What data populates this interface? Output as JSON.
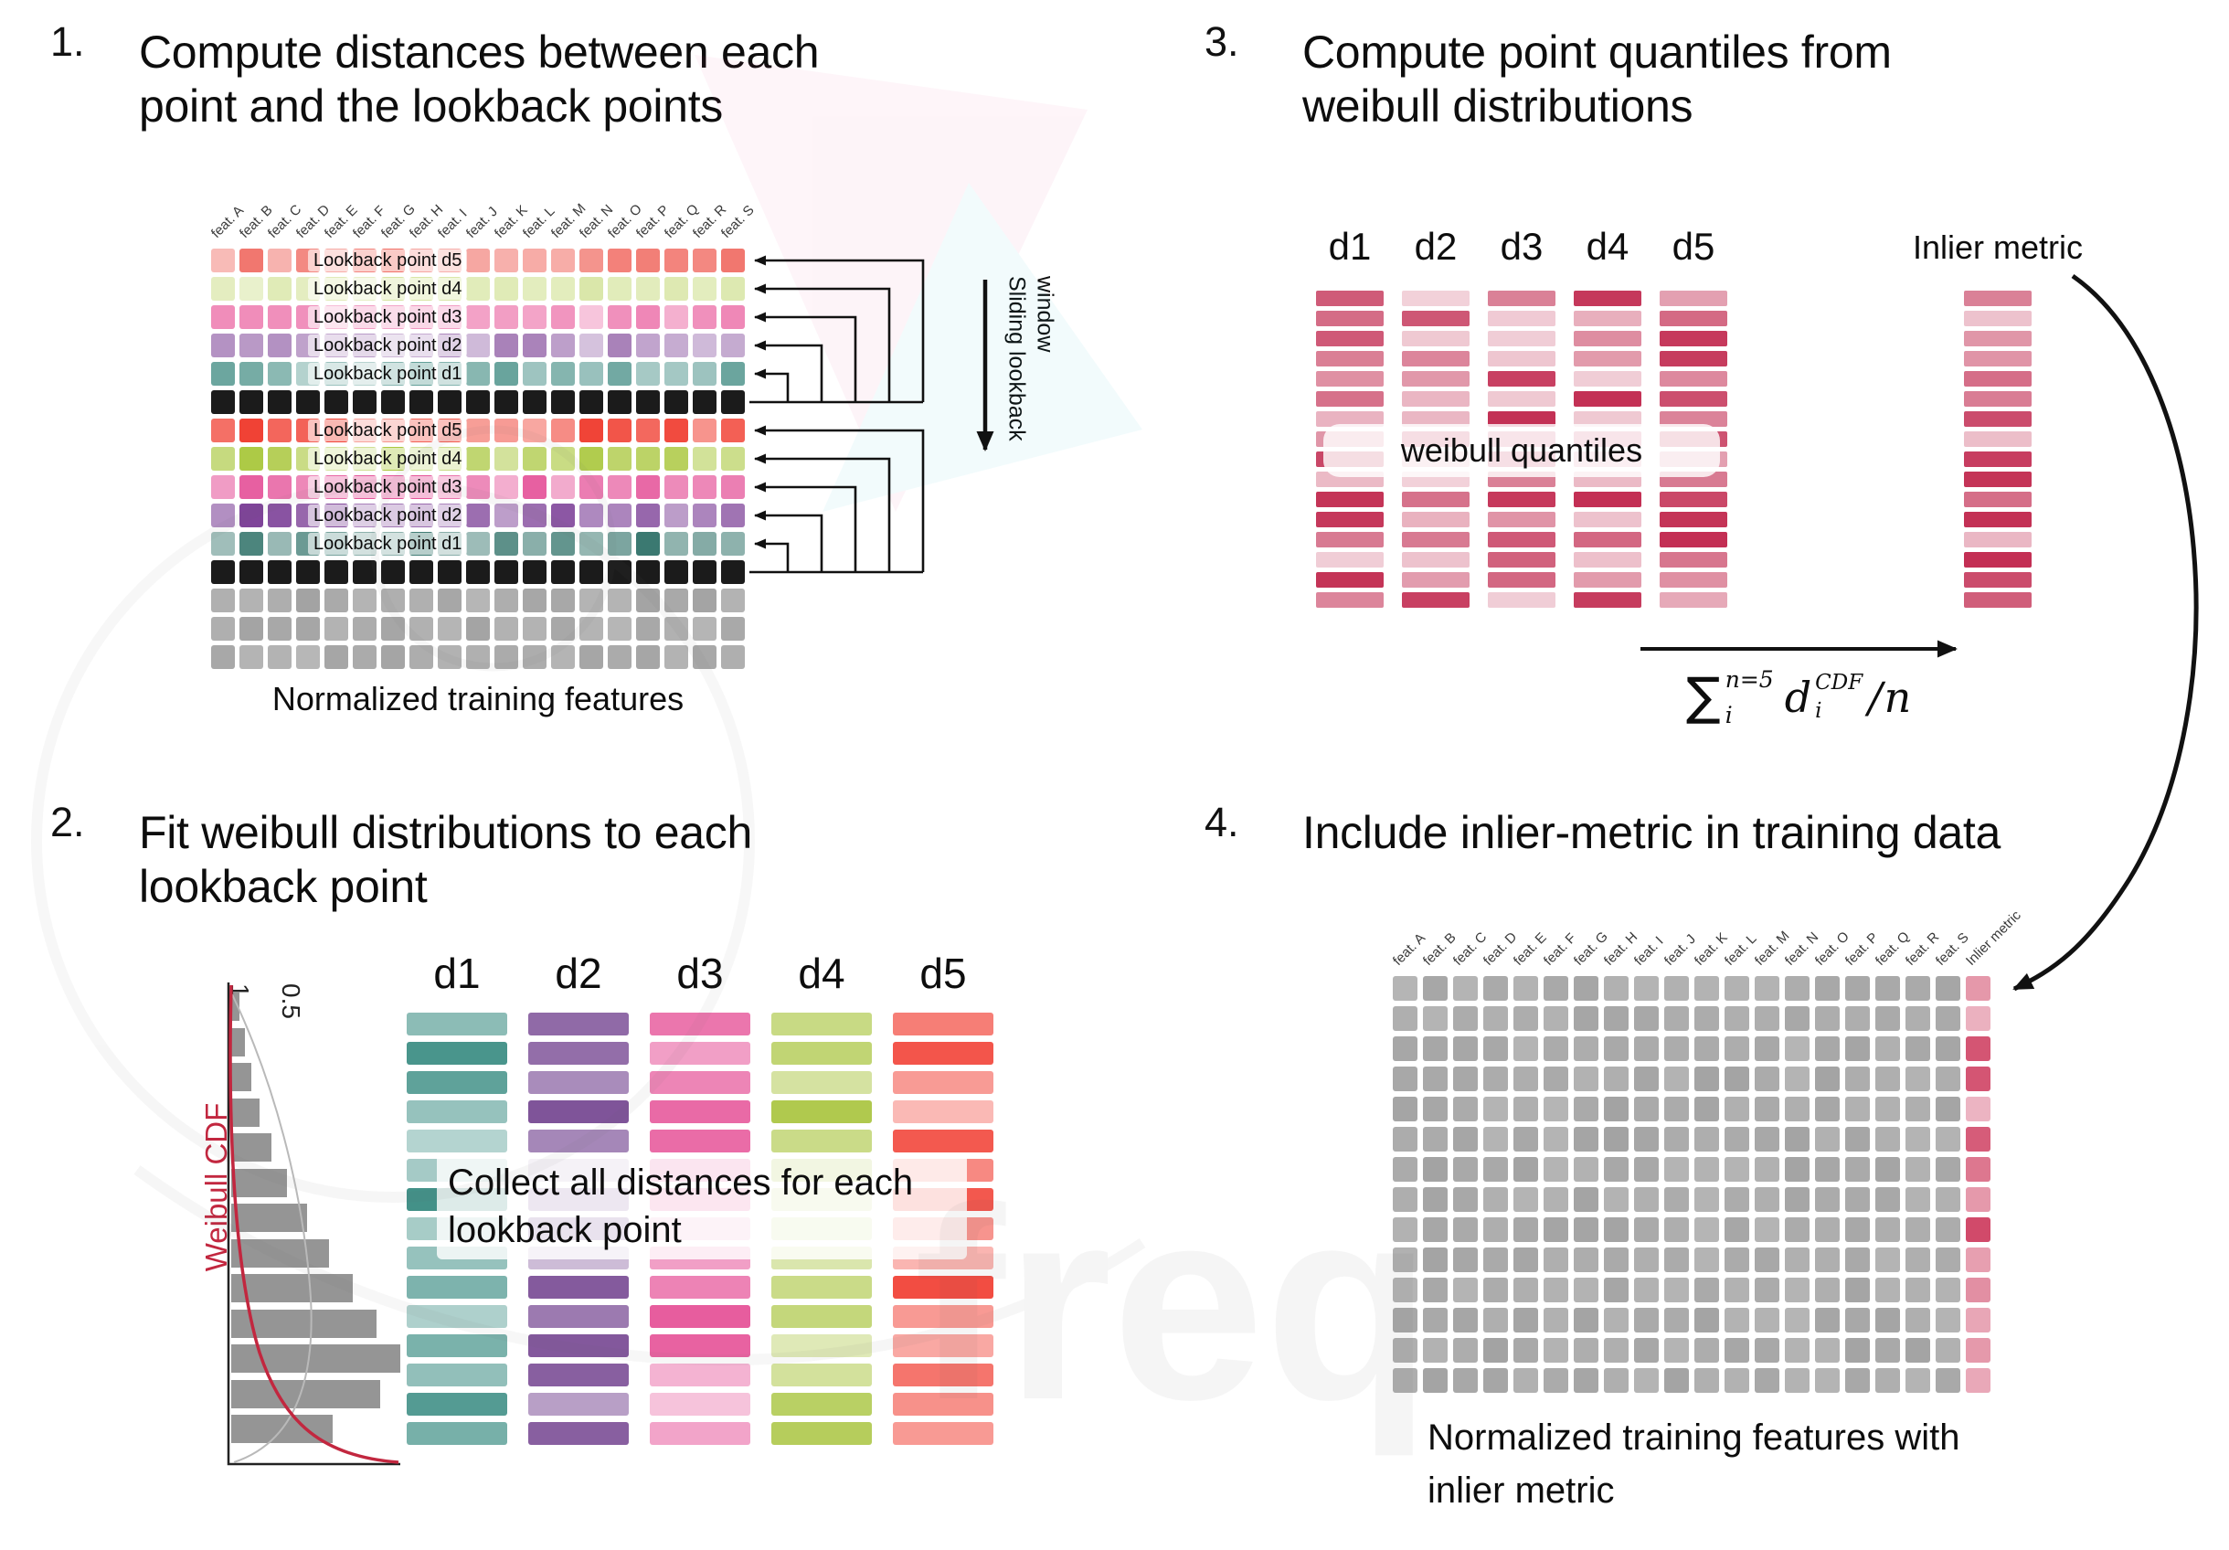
{
  "watermark": {
    "text": "freq"
  },
  "panel1": {
    "number": "1.",
    "title": "Compute distances between each point and the lookback points",
    "caption": "Normalized training features",
    "sliding_label": "Sliding lookback window",
    "feature_headers": [
      "feat. A",
      "feat. B",
      "feat. C",
      "feat. D",
      "feat. E",
      "feat. F",
      "feat. G",
      "feat. H",
      "feat. I",
      "feat. J",
      "feat. K",
      "feat. L",
      "feat. M",
      "feat. N",
      "feat. O",
      "feat. P",
      "feat. Q",
      "feat. R",
      "feat. S"
    ],
    "rows": [
      {
        "label": "Lookback point d5",
        "color": "#f0685f"
      },
      {
        "label": "Lookback point d4",
        "color": "#d4e39b"
      },
      {
        "label": "Lookback point d3",
        "color": "#ee7fb2"
      },
      {
        "label": "Lookback point d2",
        "color": "#a77fb8"
      },
      {
        "label": "Lookback point d1",
        "color": "#63a099"
      },
      {
        "label": "",
        "color": "#1b1b1b",
        "solid": true
      },
      {
        "label": "Lookback point d5",
        "color": "#f04033"
      },
      {
        "label": "Lookback point d4",
        "color": "#a9c73c"
      },
      {
        "label": "Lookback point d3",
        "color": "#e44f97"
      },
      {
        "label": "Lookback point d2",
        "color": "#7b3e96"
      },
      {
        "label": "Lookback point d1",
        "color": "#2f7168"
      },
      {
        "label": "",
        "color": "#1b1b1b",
        "solid": true
      },
      {
        "label": "",
        "color": "#a3a3a3",
        "gray": true
      },
      {
        "label": "",
        "color": "#a3a3a3",
        "gray": true
      },
      {
        "label": "",
        "color": "#a3a3a3",
        "gray": true
      }
    ]
  },
  "panel2": {
    "number": "2.",
    "title": "Fit weibull distributions to each lookback point",
    "overlay": "Collect all distances for each lookback point",
    "axis": {
      "tick_1": "1",
      "tick_05": "0.5",
      "cdf_label": "Weibull CDF",
      "cdf_color": "#c2273f"
    },
    "bar_count": 15,
    "columns": [
      {
        "label": "d1",
        "color": "#3f8f86"
      },
      {
        "label": "d2",
        "color": "#7b4e96"
      },
      {
        "label": "d3",
        "color": "#e75a9c"
      },
      {
        "label": "d4",
        "color": "#aec84a"
      },
      {
        "label": "d5",
        "color": "#f2473c"
      }
    ],
    "histogram": [
      0.05,
      0.08,
      0.12,
      0.17,
      0.24,
      0.33,
      0.45,
      0.58,
      0.72,
      0.86,
      1.0,
      0.88,
      0.6
    ]
  },
  "panel3": {
    "number": "3.",
    "title": "Compute point quantiles from weibull distributions",
    "overlay": "weibull quantiles",
    "inlier_label": "Inlier metric",
    "column_labels": [
      "d1",
      "d2",
      "d3",
      "d4",
      "d5"
    ],
    "bar_color": "#c22d52",
    "bar_count": 16,
    "formula": {
      "sum": "∑",
      "sum_sup": "n=5",
      "sum_sub": "i",
      "var": "d",
      "var_sup": "CDF",
      "var_sub": "i",
      "divide": "/",
      "denom": "n"
    }
  },
  "panel4": {
    "number": "4.",
    "title": "Include inlier-metric in training data",
    "caption": "Normalized training features with inlier metric",
    "feature_headers": [
      "feat. A",
      "feat. B",
      "feat. C",
      "feat. D",
      "feat. E",
      "feat. F",
      "feat. G",
      "feat. H",
      "feat. I",
      "feat. J",
      "feat. K",
      "feat. L",
      "feat. M",
      "feat. N",
      "feat. O",
      "feat. P",
      "feat. Q",
      "feat. R",
      "feat. S"
    ],
    "inlier_header": "Inlier metric",
    "grid": {
      "rows": 14,
      "cols": 19,
      "cell_color": "#a3a3a3",
      "inlier_color": "#d14a6a"
    }
  }
}
